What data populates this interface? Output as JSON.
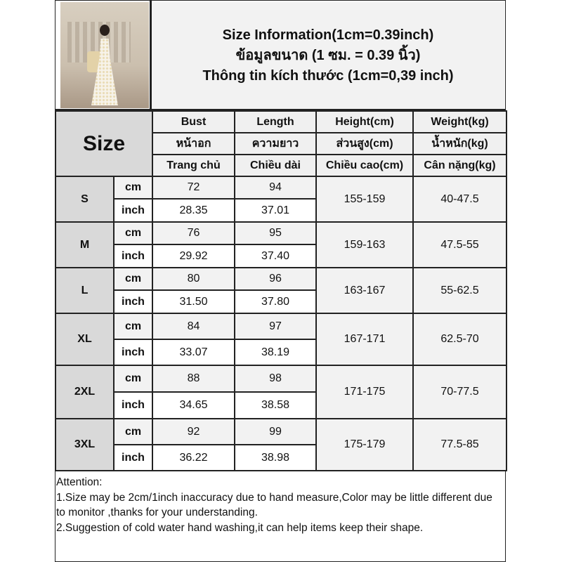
{
  "title": {
    "line1": "Size Information(1cm=0.39inch)",
    "line2": "ข้อมูลขนาด (1 ซม. = 0.39 นิ้ว)",
    "line3": "Thông tin kích thước (1cm=0,39 inch)"
  },
  "photo": {
    "icon": "product-photo-woman-floral-dress"
  },
  "header": {
    "size_label": "Size",
    "columns": [
      {
        "en": "Bust",
        "th": "หน้าอก",
        "vi": "Trang chủ"
      },
      {
        "en": "Length",
        "th": "ความยาว",
        "vi": "Chiều dài"
      },
      {
        "en": "Height(cm)",
        "th": "ส่วนสูง(cm)",
        "vi": "Chiều cao(cm)"
      },
      {
        "en": "Weight(kg)",
        "th": "น้ำหนัก(kg)",
        "vi": "Cân nặng(kg)"
      }
    ]
  },
  "units": {
    "cm": "cm",
    "inch": "inch"
  },
  "sizes": [
    {
      "size": "S",
      "bust_cm": "72",
      "length_cm": "94",
      "bust_inch": "28.35",
      "length_inch": "37.01",
      "height": "155-159",
      "weight": "40-47.5"
    },
    {
      "size": "M",
      "bust_cm": "76",
      "length_cm": "95",
      "bust_inch": "29.92",
      "length_inch": "37.40",
      "height": "159-163",
      "weight": "47.5-55"
    },
    {
      "size": "L",
      "bust_cm": "80",
      "length_cm": "96",
      "bust_inch": "31.50",
      "length_inch": "37.80",
      "height": "163-167",
      "weight": "55-62.5"
    },
    {
      "size": "XL",
      "bust_cm": "84",
      "length_cm": "97",
      "bust_inch": "33.07",
      "length_inch": "38.19",
      "height": "167-171",
      "weight": "62.5-70"
    },
    {
      "size": "2XL",
      "bust_cm": "88",
      "length_cm": "98",
      "bust_inch": "34.65",
      "length_inch": "38.58",
      "height": "171-175",
      "weight": "70-77.5"
    },
    {
      "size": "3XL",
      "bust_cm": "92",
      "length_cm": "99",
      "bust_inch": "36.22",
      "length_inch": "38.98",
      "height": "175-179",
      "weight": "77.5-85"
    }
  ],
  "attention": {
    "heading": "Attention:",
    "note1": "1.Size may be 2cm/1inch inaccuracy due to hand measure,Color may be little different due to monitor ,thanks for your understanding.",
    "note2": "2.Suggestion of cold water hand washing,it can help items keep their shape."
  }
}
